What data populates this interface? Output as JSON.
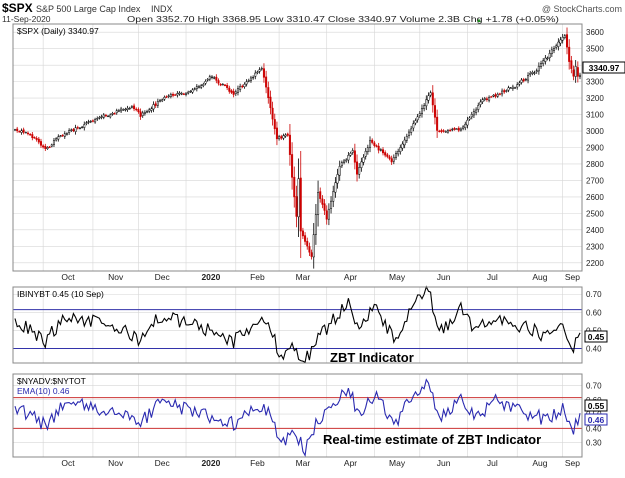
{
  "header": {
    "symbol": "$SPX",
    "name": "S&P 500 Large Cap Index",
    "exchange": "INDX",
    "date": "11-Sep-2020",
    "source": "@ StockCharts.com",
    "quote": "Open 3352.70  High 3368.95  Low 3310.47  Close 3340.97  Volume 2.3B  Chg +1.78 (+0.05%)",
    "quote_chg_arrow": "▲"
  },
  "annotations": {
    "zbt": "ZBT Indicator",
    "rt": "Real-time estimate of ZBT Indicator"
  },
  "colors": {
    "up": "#000000",
    "down": "#cc0000",
    "zbt_line": "#000000",
    "ref_line": "#3333aa",
    "rt_line": "#2a2ab0",
    "rt_ref_line": "#cc3333",
    "grid": "#d6d6d6"
  },
  "chart_data": [
    {
      "type": "line",
      "subtype": "candlestick",
      "legend": "$SPX (Daily) 3340.97",
      "last_value_label": "3340.97",
      "ylim": [
        2150,
        3650
      ],
      "yticks": [
        2200,
        2300,
        2400,
        2500,
        2600,
        2700,
        2800,
        2900,
        3000,
        3100,
        3200,
        3300,
        3400,
        3500,
        3600
      ],
      "xticks": [
        "Oct",
        "Nov",
        "Dec",
        "2020",
        "Feb",
        "Mar",
        "Apr",
        "May",
        "Jun",
        "Jul",
        "Aug",
        "Sep"
      ],
      "x_range": [
        "2019-09-12",
        "2020-09-11"
      ],
      "anchors": [
        {
          "date": "2019-09-12",
          "close": 3009
        },
        {
          "date": "2019-09-20",
          "close": 2992
        },
        {
          "date": "2019-10-02",
          "close": 2887
        },
        {
          "date": "2019-10-11",
          "close": 2970
        },
        {
          "date": "2019-10-28",
          "close": 3039
        },
        {
          "date": "2019-11-05",
          "close": 3074
        },
        {
          "date": "2019-11-27",
          "close": 3153
        },
        {
          "date": "2019-12-03",
          "close": 3093
        },
        {
          "date": "2019-12-20",
          "close": 3221
        },
        {
          "date": "2020-01-03",
          "close": 3234
        },
        {
          "date": "2020-01-17",
          "close": 3330
        },
        {
          "date": "2020-01-31",
          "close": 3226
        },
        {
          "date": "2020-02-19",
          "close": 3386
        },
        {
          "date": "2020-02-28",
          "close": 2954
        },
        {
          "date": "2020-03-06",
          "close": 2972
        },
        {
          "date": "2020-03-12",
          "close": 2481
        },
        {
          "date": "2020-03-13",
          "close": 2711
        },
        {
          "date": "2020-03-16",
          "close": 2386
        },
        {
          "date": "2020-03-23",
          "close": 2237
        },
        {
          "date": "2020-03-26",
          "close": 2630
        },
        {
          "date": "2020-04-01",
          "close": 2471
        },
        {
          "date": "2020-04-09",
          "close": 2790
        },
        {
          "date": "2020-04-17",
          "close": 2875
        },
        {
          "date": "2020-04-21",
          "close": 2737
        },
        {
          "date": "2020-04-29",
          "close": 2940
        },
        {
          "date": "2020-05-13",
          "close": 2820
        },
        {
          "date": "2020-05-27",
          "close": 3036
        },
        {
          "date": "2020-06-08",
          "close": 3232
        },
        {
          "date": "2020-06-11",
          "close": 3002
        },
        {
          "date": "2020-06-26",
          "close": 3009
        },
        {
          "date": "2020-07-10",
          "close": 3185
        },
        {
          "date": "2020-07-31",
          "close": 3271
        },
        {
          "date": "2020-08-14",
          "close": 3372
        },
        {
          "date": "2020-09-02",
          "close": 3580
        },
        {
          "date": "2020-09-04",
          "close": 3427
        },
        {
          "date": "2020-09-08",
          "close": 3331
        },
        {
          "date": "2020-09-09",
          "close": 3398
        },
        {
          "date": "2020-09-10",
          "close": 3339
        },
        {
          "date": "2020-09-11",
          "close": 3341
        }
      ]
    },
    {
      "type": "line",
      "legend": "IBINYBT 0.45 (10 Sep)",
      "last_value_label": "0.45",
      "ylim": [
        0.32,
        0.74
      ],
      "yticks": [
        0.4,
        0.5,
        0.6,
        0.7
      ],
      "ref_lines": [
        0.4,
        0.615
      ],
      "anchors": [
        {
          "date": "2019-09-12",
          "value": 0.56
        },
        {
          "date": "2019-10-02",
          "value": 0.44
        },
        {
          "date": "2019-10-15",
          "value": 0.58
        },
        {
          "date": "2019-11-15",
          "value": 0.52
        },
        {
          "date": "2019-12-03",
          "value": 0.45
        },
        {
          "date": "2019-12-16",
          "value": 0.58
        },
        {
          "date": "2020-01-10",
          "value": 0.52
        },
        {
          "date": "2020-01-31",
          "value": 0.44
        },
        {
          "date": "2020-02-19",
          "value": 0.57
        },
        {
          "date": "2020-02-27",
          "value": 0.45
        },
        {
          "date": "2020-03-03",
          "value": 0.35
        },
        {
          "date": "2020-03-10",
          "value": 0.42
        },
        {
          "date": "2020-03-18",
          "value": 0.33
        },
        {
          "date": "2020-03-25",
          "value": 0.44
        },
        {
          "date": "2020-04-06",
          "value": 0.56
        },
        {
          "date": "2020-04-15",
          "value": 0.66
        },
        {
          "date": "2020-04-22",
          "value": 0.52
        },
        {
          "date": "2020-05-04",
          "value": 0.63
        },
        {
          "date": "2020-05-14",
          "value": 0.44
        },
        {
          "date": "2020-05-28",
          "value": 0.65
        },
        {
          "date": "2020-06-05",
          "value": 0.72
        },
        {
          "date": "2020-06-12",
          "value": 0.48
        },
        {
          "date": "2020-06-26",
          "value": 0.62
        },
        {
          "date": "2020-07-07",
          "value": 0.49
        },
        {
          "date": "2020-07-20",
          "value": 0.58
        },
        {
          "date": "2020-08-03",
          "value": 0.53
        },
        {
          "date": "2020-08-21",
          "value": 0.47
        },
        {
          "date": "2020-09-01",
          "value": 0.52
        },
        {
          "date": "2020-09-08",
          "value": 0.41
        },
        {
          "date": "2020-09-10",
          "value": 0.45
        }
      ]
    },
    {
      "type": "line",
      "legend": "$NYADV:$NYTOT",
      "legend_ema": "EMA(10) 0.46",
      "last_value_labels": [
        "0.55",
        "0.46"
      ],
      "ylim": [
        0.2,
        0.78
      ],
      "yticks": [
        0.3,
        0.4,
        0.5,
        0.6,
        0.7
      ],
      "ref_lines": [
        0.4,
        0.615
      ],
      "anchors": [
        {
          "date": "2019-09-12",
          "value": 0.55
        },
        {
          "date": "2019-10-02",
          "value": 0.42
        },
        {
          "date": "2019-10-15",
          "value": 0.58
        },
        {
          "date": "2019-11-15",
          "value": 0.51
        },
        {
          "date": "2019-12-03",
          "value": 0.44
        },
        {
          "date": "2019-12-16",
          "value": 0.58
        },
        {
          "date": "2020-01-10",
          "value": 0.51
        },
        {
          "date": "2020-01-31",
          "value": 0.43
        },
        {
          "date": "2020-02-19",
          "value": 0.57
        },
        {
          "date": "2020-02-27",
          "value": 0.42
        },
        {
          "date": "2020-03-03",
          "value": 0.3
        },
        {
          "date": "2020-03-10",
          "value": 0.38
        },
        {
          "date": "2020-03-18",
          "value": 0.26
        },
        {
          "date": "2020-03-25",
          "value": 0.42
        },
        {
          "date": "2020-04-06",
          "value": 0.58
        },
        {
          "date": "2020-04-15",
          "value": 0.67
        },
        {
          "date": "2020-04-22",
          "value": 0.5
        },
        {
          "date": "2020-05-04",
          "value": 0.63
        },
        {
          "date": "2020-05-14",
          "value": 0.42
        },
        {
          "date": "2020-05-28",
          "value": 0.66
        },
        {
          "date": "2020-06-05",
          "value": 0.74
        },
        {
          "date": "2020-06-12",
          "value": 0.45
        },
        {
          "date": "2020-06-26",
          "value": 0.62
        },
        {
          "date": "2020-07-07",
          "value": 0.47
        },
        {
          "date": "2020-07-20",
          "value": 0.59
        },
        {
          "date": "2020-08-03",
          "value": 0.53
        },
        {
          "date": "2020-08-21",
          "value": 0.46
        },
        {
          "date": "2020-09-01",
          "value": 0.53
        },
        {
          "date": "2020-09-08",
          "value": 0.4
        },
        {
          "date": "2020-09-11",
          "value": 0.46
        }
      ]
    }
  ]
}
